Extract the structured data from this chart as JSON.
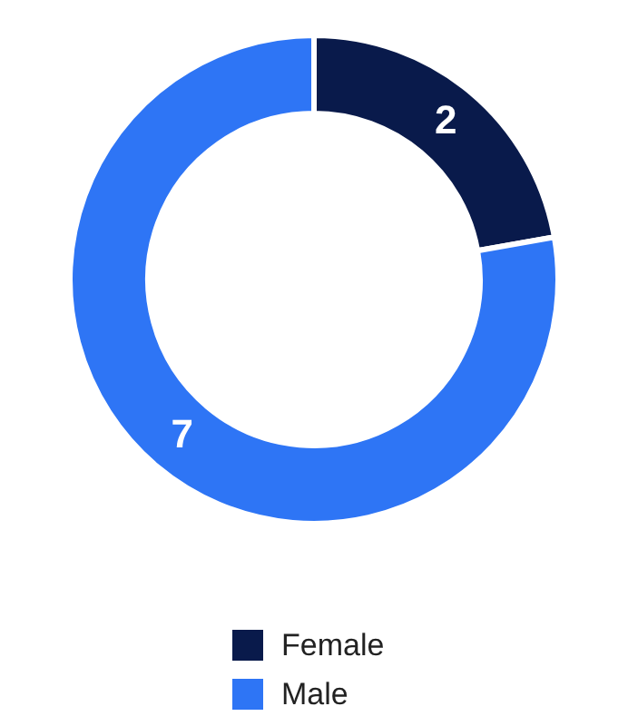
{
  "chart_data": {
    "type": "donut",
    "categories": [
      "Female",
      "Male"
    ],
    "values": [
      2,
      7
    ],
    "colors": [
      "#091a4b",
      "#2e75f5"
    ],
    "data_labels": true,
    "legend": "bottom"
  }
}
